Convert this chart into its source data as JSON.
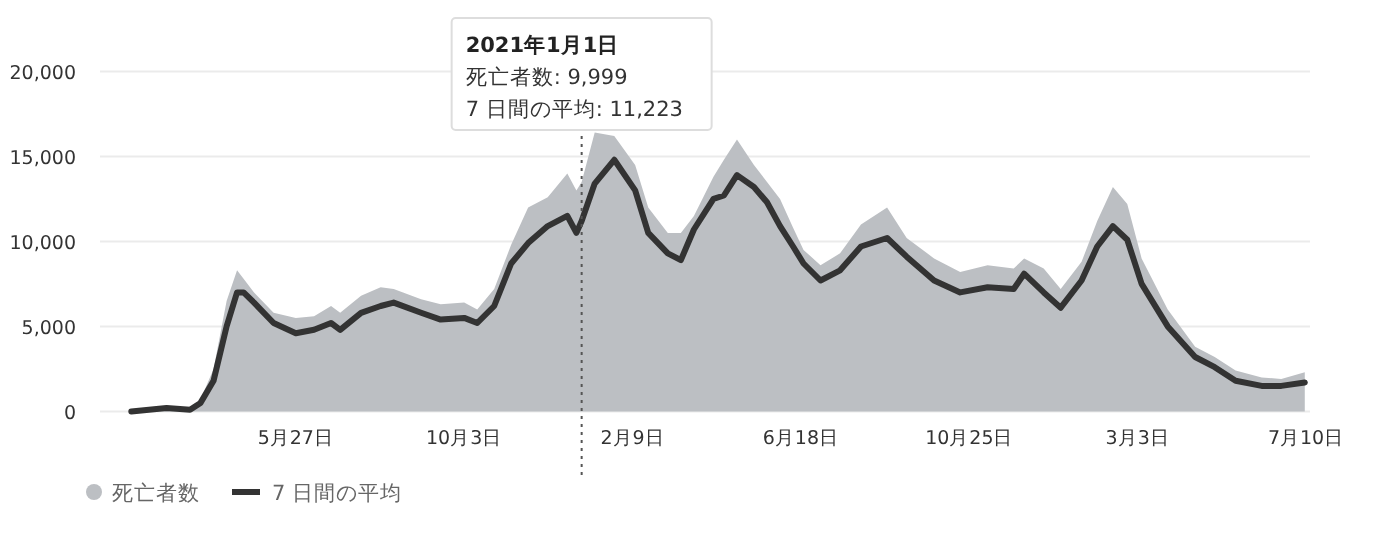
{
  "chart_data": {
    "type": "area",
    "x": [
      "2020-01-22",
      "2020-02-18",
      "2020-03-07",
      "2020-03-15",
      "2020-03-25",
      "2020-04-04",
      "2020-04-12",
      "2020-04-17",
      "2020-04-25",
      "2020-05-10",
      "2020-05-27",
      "2020-06-10",
      "2020-06-23",
      "2020-06-30",
      "2020-07-16",
      "2020-07-31",
      "2020-08-10",
      "2020-08-31",
      "2020-09-15",
      "2020-10-03",
      "2020-10-13",
      "2020-10-26",
      "2020-11-08",
      "2020-11-21",
      "2020-12-06",
      "2020-12-21",
      "2020-12-28",
      "2021-01-01",
      "2021-01-11",
      "2021-01-26",
      "2021-02-11",
      "2021-02-21",
      "2021-03-08",
      "2021-03-18",
      "2021-03-28",
      "2021-04-12",
      "2021-04-20",
      "2021-04-30",
      "2021-05-13",
      "2021-05-23",
      "2021-06-02",
      "2021-06-12",
      "2021-06-20",
      "2021-07-03",
      "2021-07-18",
      "2021-08-03",
      "2021-08-23",
      "2021-09-07",
      "2021-09-28",
      "2021-10-18",
      "2021-11-08",
      "2021-11-28",
      "2021-12-06",
      "2021-12-21",
      "2022-01-03",
      "2022-01-19",
      "2022-01-31",
      "2022-02-12",
      "2022-02-23",
      "2022-03-06",
      "2022-03-26",
      "2022-04-16",
      "2022-05-01",
      "2022-05-17",
      "2022-06-06",
      "2022-06-21",
      "2022-07-09"
    ],
    "series": [
      {
        "name": "死亡者数",
        "color": "#bcbfc3",
        "values": [
          0,
          200,
          200,
          700,
          2500,
          6500,
          8300,
          7800,
          7000,
          5800,
          5500,
          5600,
          6200,
          5800,
          6800,
          7300,
          7200,
          6600,
          6300,
          6400,
          6000,
          7200,
          9800,
          12000,
          12600,
          14000,
          13000,
          13500,
          16400,
          16200,
          14500,
          12000,
          10500,
          10500,
          11500,
          13800,
          14800,
          16000,
          14500,
          13500,
          12500,
          10800,
          9500,
          8600,
          9300,
          11000,
          12000,
          10200,
          9000,
          8200,
          8600,
          8400,
          9000,
          8400,
          7200,
          8800,
          11200,
          13200,
          12200,
          9000,
          6000,
          3800,
          3200,
          2400,
          2000,
          1900,
          2300
        ]
      },
      {
        "name": "7 日間の平均",
        "type": "line",
        "color": "#333333",
        "values": [
          0,
          200,
          100,
          500,
          1800,
          5000,
          7000,
          7000,
          6400,
          5200,
          4600,
          4800,
          5200,
          4800,
          5800,
          6200,
          6400,
          5800,
          5400,
          5500,
          5200,
          6200,
          8700,
          9900,
          10900,
          11500,
          10500,
          11200,
          13400,
          14800,
          13000,
          10500,
          9300,
          8900,
          10700,
          12500,
          12700,
          13900,
          13200,
          12300,
          10900,
          9700,
          8700,
          7700,
          8300,
          9700,
          10200,
          9100,
          7700,
          7000,
          7300,
          7200,
          8100,
          7000,
          6100,
          7700,
          9700,
          10900,
          10100,
          7500,
          5000,
          3200,
          2600,
          1800,
          1500,
          1500,
          1700
        ]
      }
    ],
    "xlim": [
      "2019-12-29",
      "2022-07-13"
    ],
    "xticks": [
      {
        "value": "2020-05-27",
        "label": "5月27日"
      },
      {
        "value": "2020-10-03",
        "label": "10月3日"
      },
      {
        "value": "2021-02-09",
        "label": "2月9日"
      },
      {
        "value": "2021-06-18",
        "label": "6月18日"
      },
      {
        "value": "2021-10-25",
        "label": "10月25日"
      },
      {
        "value": "2022-03-03",
        "label": "3月3日"
      },
      {
        "value": "2022-07-10",
        "label": "7月10日"
      }
    ],
    "ylim": [
      0,
      20000
    ],
    "yticks": [
      {
        "value": 0,
        "label": "0"
      },
      {
        "value": 5000,
        "label": "5,000"
      },
      {
        "value": 10000,
        "label": "10,000"
      },
      {
        "value": 15000,
        "label": "15,000"
      },
      {
        "value": 20000,
        "label": "20,000"
      }
    ],
    "grid": "y",
    "legend": "bottom",
    "ref_lines": [
      {
        "axis": "x",
        "value": "2021-01-01",
        "color": "#555555",
        "line_style": "dotted"
      }
    ],
    "annotations": [
      "**2021年1月1日**",
      "死亡者数: 9,999",
      "7 日間の平均: 11,223"
    ]
  }
}
